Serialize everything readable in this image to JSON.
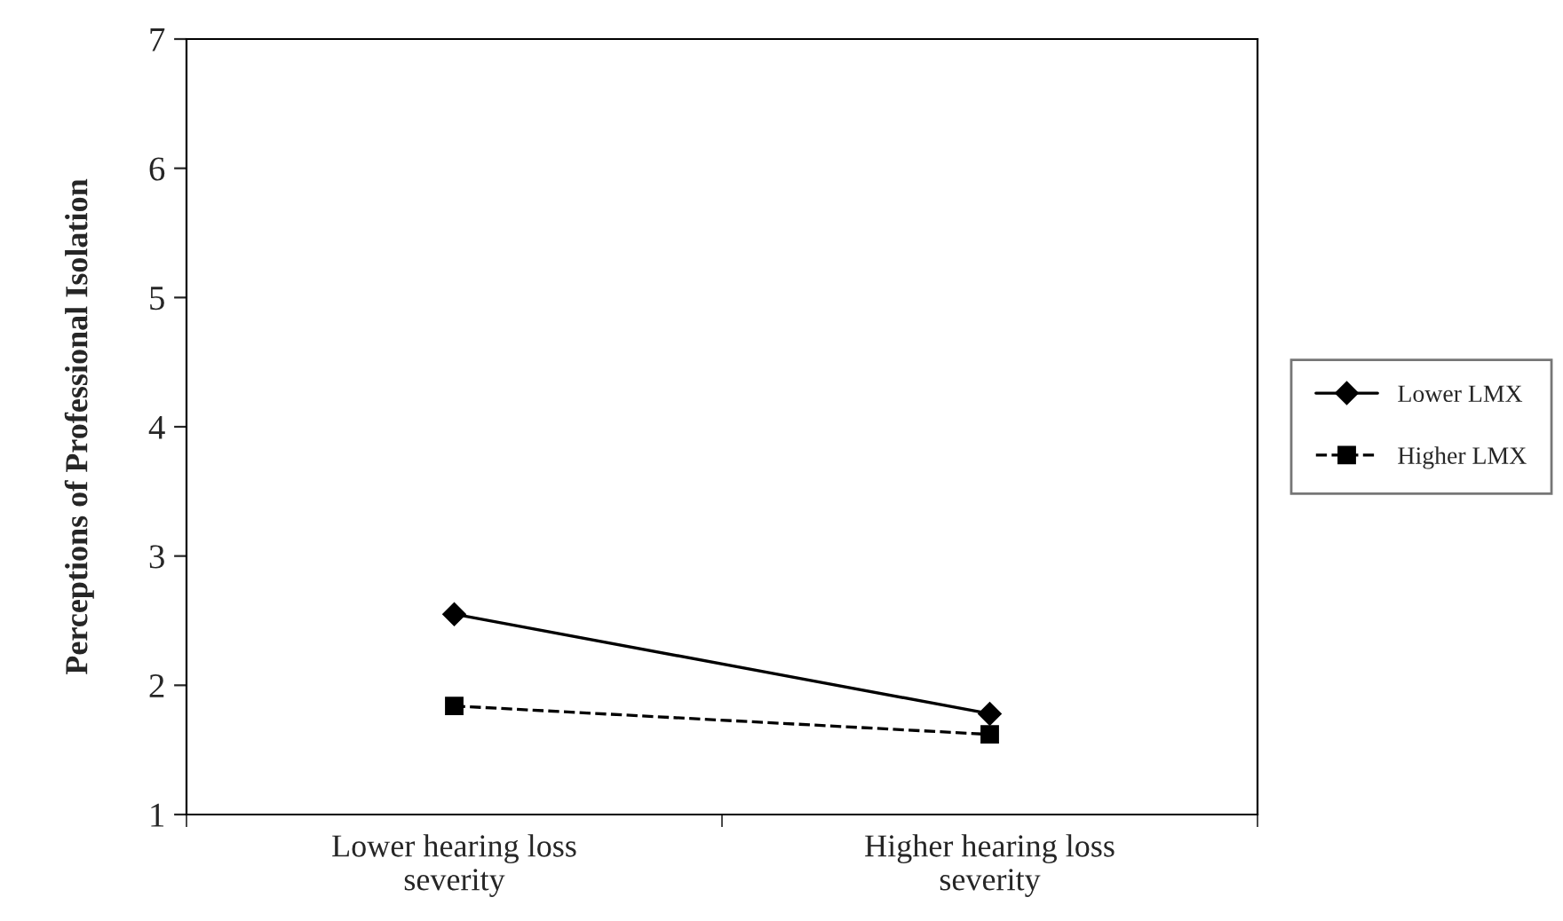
{
  "chart_data": {
    "type": "line",
    "ylabel": "Perceptions of Professional Isolation",
    "categories": [
      "Lower hearing loss\nseverity",
      "Higher hearing loss\nseverity"
    ],
    "series": [
      {
        "name": "Lower LMX",
        "color": "#000000",
        "values": [
          2.55,
          1.78
        ],
        "marker": "diamond",
        "line_style": "solid"
      },
      {
        "name": "Higher LMX",
        "color": "#000000",
        "values": [
          1.84,
          1.62
        ],
        "marker": "square",
        "line_style": "dashed"
      }
    ],
    "ylim": [
      1,
      7
    ],
    "yticks": [
      1,
      2,
      3,
      4,
      5,
      6,
      7
    ],
    "grid": false,
    "legend": "right"
  }
}
